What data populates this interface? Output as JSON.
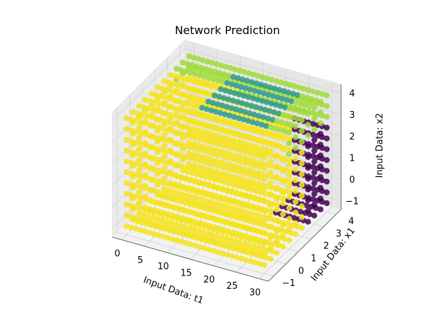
{
  "chart_data": {
    "type": "scatter",
    "projection": "3d",
    "title": "Network Prediction",
    "xlabel": "Input Data: t1",
    "ylabel": "Input Data: x1",
    "zlabel": "Input Data: x2",
    "xlim": [
      0,
      30
    ],
    "ylim": [
      -1,
      4
    ],
    "zlim": [
      -1,
      4
    ],
    "x_ticks": [
      "0",
      "5",
      "10",
      "15",
      "20",
      "25",
      "30"
    ],
    "y_ticks": [
      "−1",
      "0",
      "1",
      "2",
      "3",
      "4"
    ],
    "z_ticks": [
      "−1",
      "0",
      "1",
      "2",
      "3",
      "4"
    ],
    "grid": true,
    "colormap": "viridis",
    "grid_points": {
      "t1_count": 31,
      "x1_count": 11,
      "x2_count": 11
    },
    "color_regions": [
      {
        "description": "most of cube",
        "color": "#f4e31f"
      },
      {
        "description": "high x1 / low t1 interior",
        "color": "#440154"
      },
      {
        "description": "top surface band",
        "color": "#2a9a8a"
      },
      {
        "description": "top edges",
        "color": "#a0da39"
      }
    ]
  }
}
